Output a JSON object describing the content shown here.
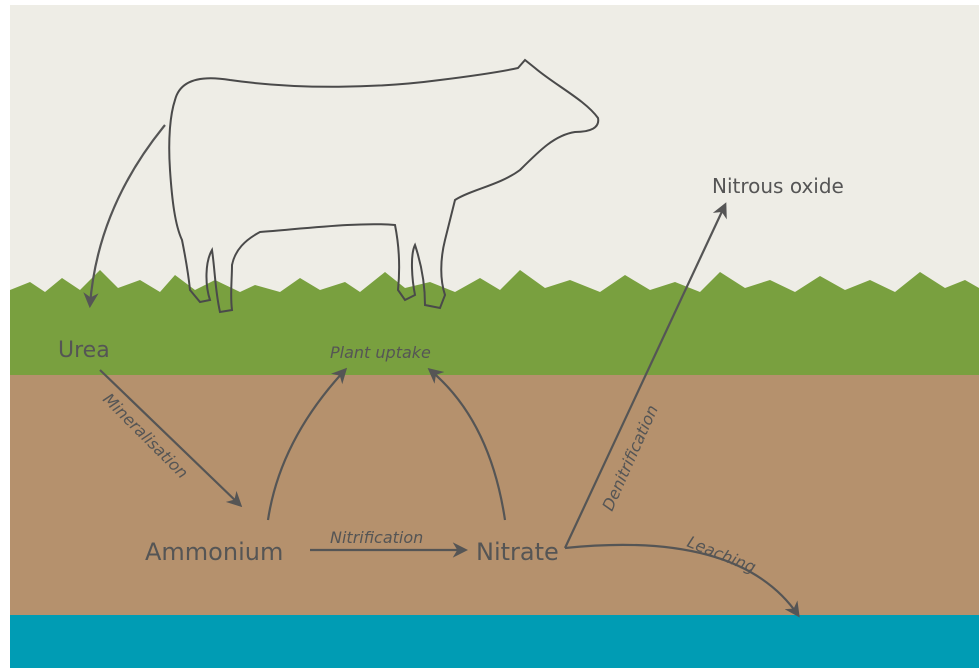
{
  "nodes": [
    {
      "label": "Urea"
    },
    {
      "label": "Ammonium"
    },
    {
      "label": "Nitrate"
    },
    {
      "label": "Nitrous oxide"
    },
    {
      "label": "Plant uptake"
    }
  ],
  "processes": [
    {
      "label": "Mineralisation"
    },
    {
      "label": "Nitrification"
    },
    {
      "label": "Denitrification"
    },
    {
      "label": "Leaching"
    }
  ]
}
